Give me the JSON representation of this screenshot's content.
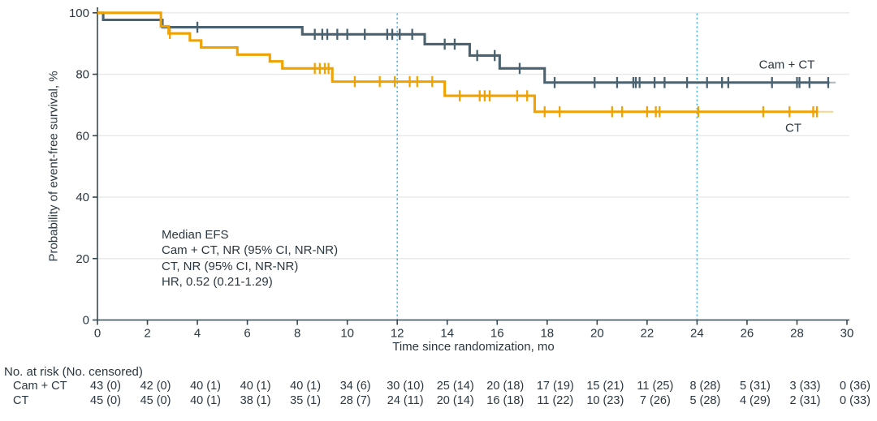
{
  "chart_data": {
    "type": "line",
    "subtype": "kaplan-meier-step",
    "x_axis": {
      "label": "Time since randomization, mo",
      "range": [
        0,
        30
      ],
      "ticks": [
        0,
        2,
        4,
        6,
        8,
        10,
        12,
        14,
        16,
        18,
        20,
        22,
        24,
        26,
        28,
        30
      ]
    },
    "y_axis": {
      "label": "Probability of event-free survival, %",
      "range": [
        0,
        100
      ],
      "ticks": [
        0,
        20,
        40,
        60,
        80,
        100
      ]
    },
    "grid": "horizontal-light",
    "reference_lines": {
      "x_values": [
        12,
        24
      ],
      "style": "dotted",
      "color": "#45b6e8"
    },
    "series": [
      {
        "name": "Cam + CT",
        "color": "#4b6370",
        "steps": [
          [
            0,
            100
          ],
          [
            0.23,
            97.7
          ],
          [
            2.6,
            95.3
          ],
          [
            8.2,
            93.0
          ],
          [
            13.1,
            89.8
          ],
          [
            14.9,
            86.1
          ],
          [
            16.1,
            81.9
          ],
          [
            17.9,
            77.3
          ]
        ],
        "censor_months": [
          4.0,
          8.7,
          9.0,
          9.2,
          9.6,
          10.0,
          10.7,
          11.6,
          11.8,
          12.1,
          12.6,
          13.9,
          14.3,
          15.2,
          15.9,
          16.9,
          18.3,
          19.9,
          20.8,
          21.45,
          21.55,
          21.7,
          22.3,
          22.7,
          23.6,
          24.4,
          25.0,
          25.25,
          27.0,
          28.0,
          28.1,
          28.5,
          29.25
        ],
        "end_main_month": 29.3,
        "end_month": 29.55
      },
      {
        "name": "CT",
        "color": "#f0a202",
        "steps": [
          [
            0,
            100
          ],
          [
            2.54,
            95.6
          ],
          [
            2.85,
            93.3
          ],
          [
            3.7,
            91.0
          ],
          [
            4.15,
            88.7
          ],
          [
            5.6,
            86.4
          ],
          [
            6.9,
            84.2
          ],
          [
            7.4,
            81.9
          ],
          [
            9.4,
            77.6
          ],
          [
            13.9,
            73.0
          ],
          [
            17.5,
            67.8
          ]
        ],
        "censor_months": [
          2.9,
          8.7,
          8.9,
          9.1,
          9.25,
          10.3,
          11.3,
          11.9,
          12.5,
          12.8,
          13.4,
          14.5,
          15.3,
          15.5,
          15.7,
          16.8,
          17.2,
          17.9,
          18.5,
          20.6,
          21.0,
          22.0,
          22.35,
          22.5,
          24.05,
          26.65,
          27.7,
          28.65,
          28.8
        ],
        "end_main_month": 28.85,
        "end_month": 29.45
      }
    ],
    "annotation": [
      "Median EFS",
      "Cam + CT, NR (95% CI, NR-NR)",
      "CT, NR (95% CI, NR-NR)",
      "HR, 0.52 (0.21-1.29)"
    ],
    "risk_table": {
      "title": "No. at risk (No. censored)",
      "months": [
        0,
        2,
        4,
        6,
        8,
        10,
        12,
        14,
        16,
        18,
        20,
        22,
        24,
        26,
        28,
        30
      ],
      "rows": [
        {
          "label": "Cam + CT",
          "values": [
            "43 (0)",
            "42 (0)",
            "40 (1)",
            "40 (1)",
            "40 (1)",
            "34 (6)",
            "30 (10)",
            "25 (14)",
            "20 (18)",
            "17 (19)",
            "15 (21)",
            "11 (25)",
            "8 (28)",
            "5 (31)",
            "3 (33)",
            "0 (36)"
          ]
        },
        {
          "label": "CT",
          "values": [
            "45 (0)",
            "45 (0)",
            "40 (1)",
            "38 (1)",
            "35 (1)",
            "28 (7)",
            "24 (11)",
            "20 (14)",
            "16 (18)",
            "11 (22)",
            "10 (23)",
            "7 (26)",
            "5 (28)",
            "4 (29)",
            "2 (31)",
            "0 (33)"
          ]
        }
      ]
    },
    "colors": {
      "cam_ct": "#4b6370",
      "ct": "#f0a202",
      "reference": "#45b6e8",
      "grid": "#e8e8e8",
      "axis": "#37474f",
      "text": "#2b3740"
    }
  }
}
